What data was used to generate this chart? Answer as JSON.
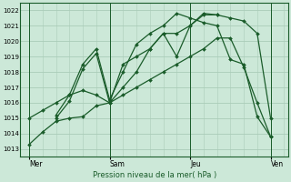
{
  "xlabel": "Pression niveau de la mer( hPa )",
  "ylim": [
    1012.5,
    1022.5
  ],
  "yticks": [
    1013,
    1014,
    1015,
    1016,
    1017,
    1018,
    1019,
    1020,
    1021,
    1022
  ],
  "bg_color": "#cce8d8",
  "grid_color": "#aaccb8",
  "line_color": "#1a5c2a",
  "days": [
    "Mer",
    "Sam",
    "Jeu",
    "Ven"
  ],
  "day_positions": [
    0,
    36,
    72,
    108
  ],
  "xlim": [
    -4,
    116
  ],
  "lines": [
    {
      "x": [
        0,
        6,
        12,
        18,
        24,
        30,
        36,
        42,
        48,
        54,
        60,
        66,
        72,
        78,
        84,
        90,
        96,
        102,
        108
      ],
      "y": [
        1013.3,
        1014.1,
        1014.8,
        1015.0,
        1015.1,
        1015.8,
        1016.0,
        1016.5,
        1017.0,
        1017.5,
        1018.0,
        1018.5,
        1019.0,
        1019.5,
        1020.2,
        1020.2,
        1018.3,
        1016.0,
        1013.8
      ]
    },
    {
      "x": [
        0,
        6,
        12,
        18,
        24,
        30,
        36,
        42,
        48,
        54,
        60,
        66,
        72,
        78,
        84,
        90,
        96,
        102,
        108
      ],
      "y": [
        1015.0,
        1015.5,
        1016.0,
        1016.5,
        1016.8,
        1016.5,
        1016.0,
        1017.0,
        1018.0,
        1019.5,
        1020.5,
        1020.5,
        1021.0,
        1021.8,
        1021.7,
        1021.5,
        1021.3,
        1020.5,
        1015.0
      ]
    },
    {
      "x": [
        12,
        18,
        24,
        30,
        36,
        42,
        48,
        54,
        60,
        66,
        72,
        78,
        84
      ],
      "y": [
        1015.0,
        1016.1,
        1018.2,
        1019.2,
        1016.0,
        1018.5,
        1019.0,
        1019.5,
        1020.5,
        1019.0,
        1021.0,
        1021.7,
        1021.7
      ]
    },
    {
      "x": [
        12,
        18,
        24,
        30,
        36,
        42,
        48,
        54,
        60,
        66,
        72,
        78,
        84,
        90,
        96,
        102,
        108
      ],
      "y": [
        1015.2,
        1016.5,
        1018.5,
        1019.5,
        1016.2,
        1018.0,
        1019.8,
        1020.5,
        1021.0,
        1021.8,
        1021.5,
        1021.2,
        1021.0,
        1018.8,
        1018.5,
        1015.1,
        1013.8
      ]
    }
  ]
}
